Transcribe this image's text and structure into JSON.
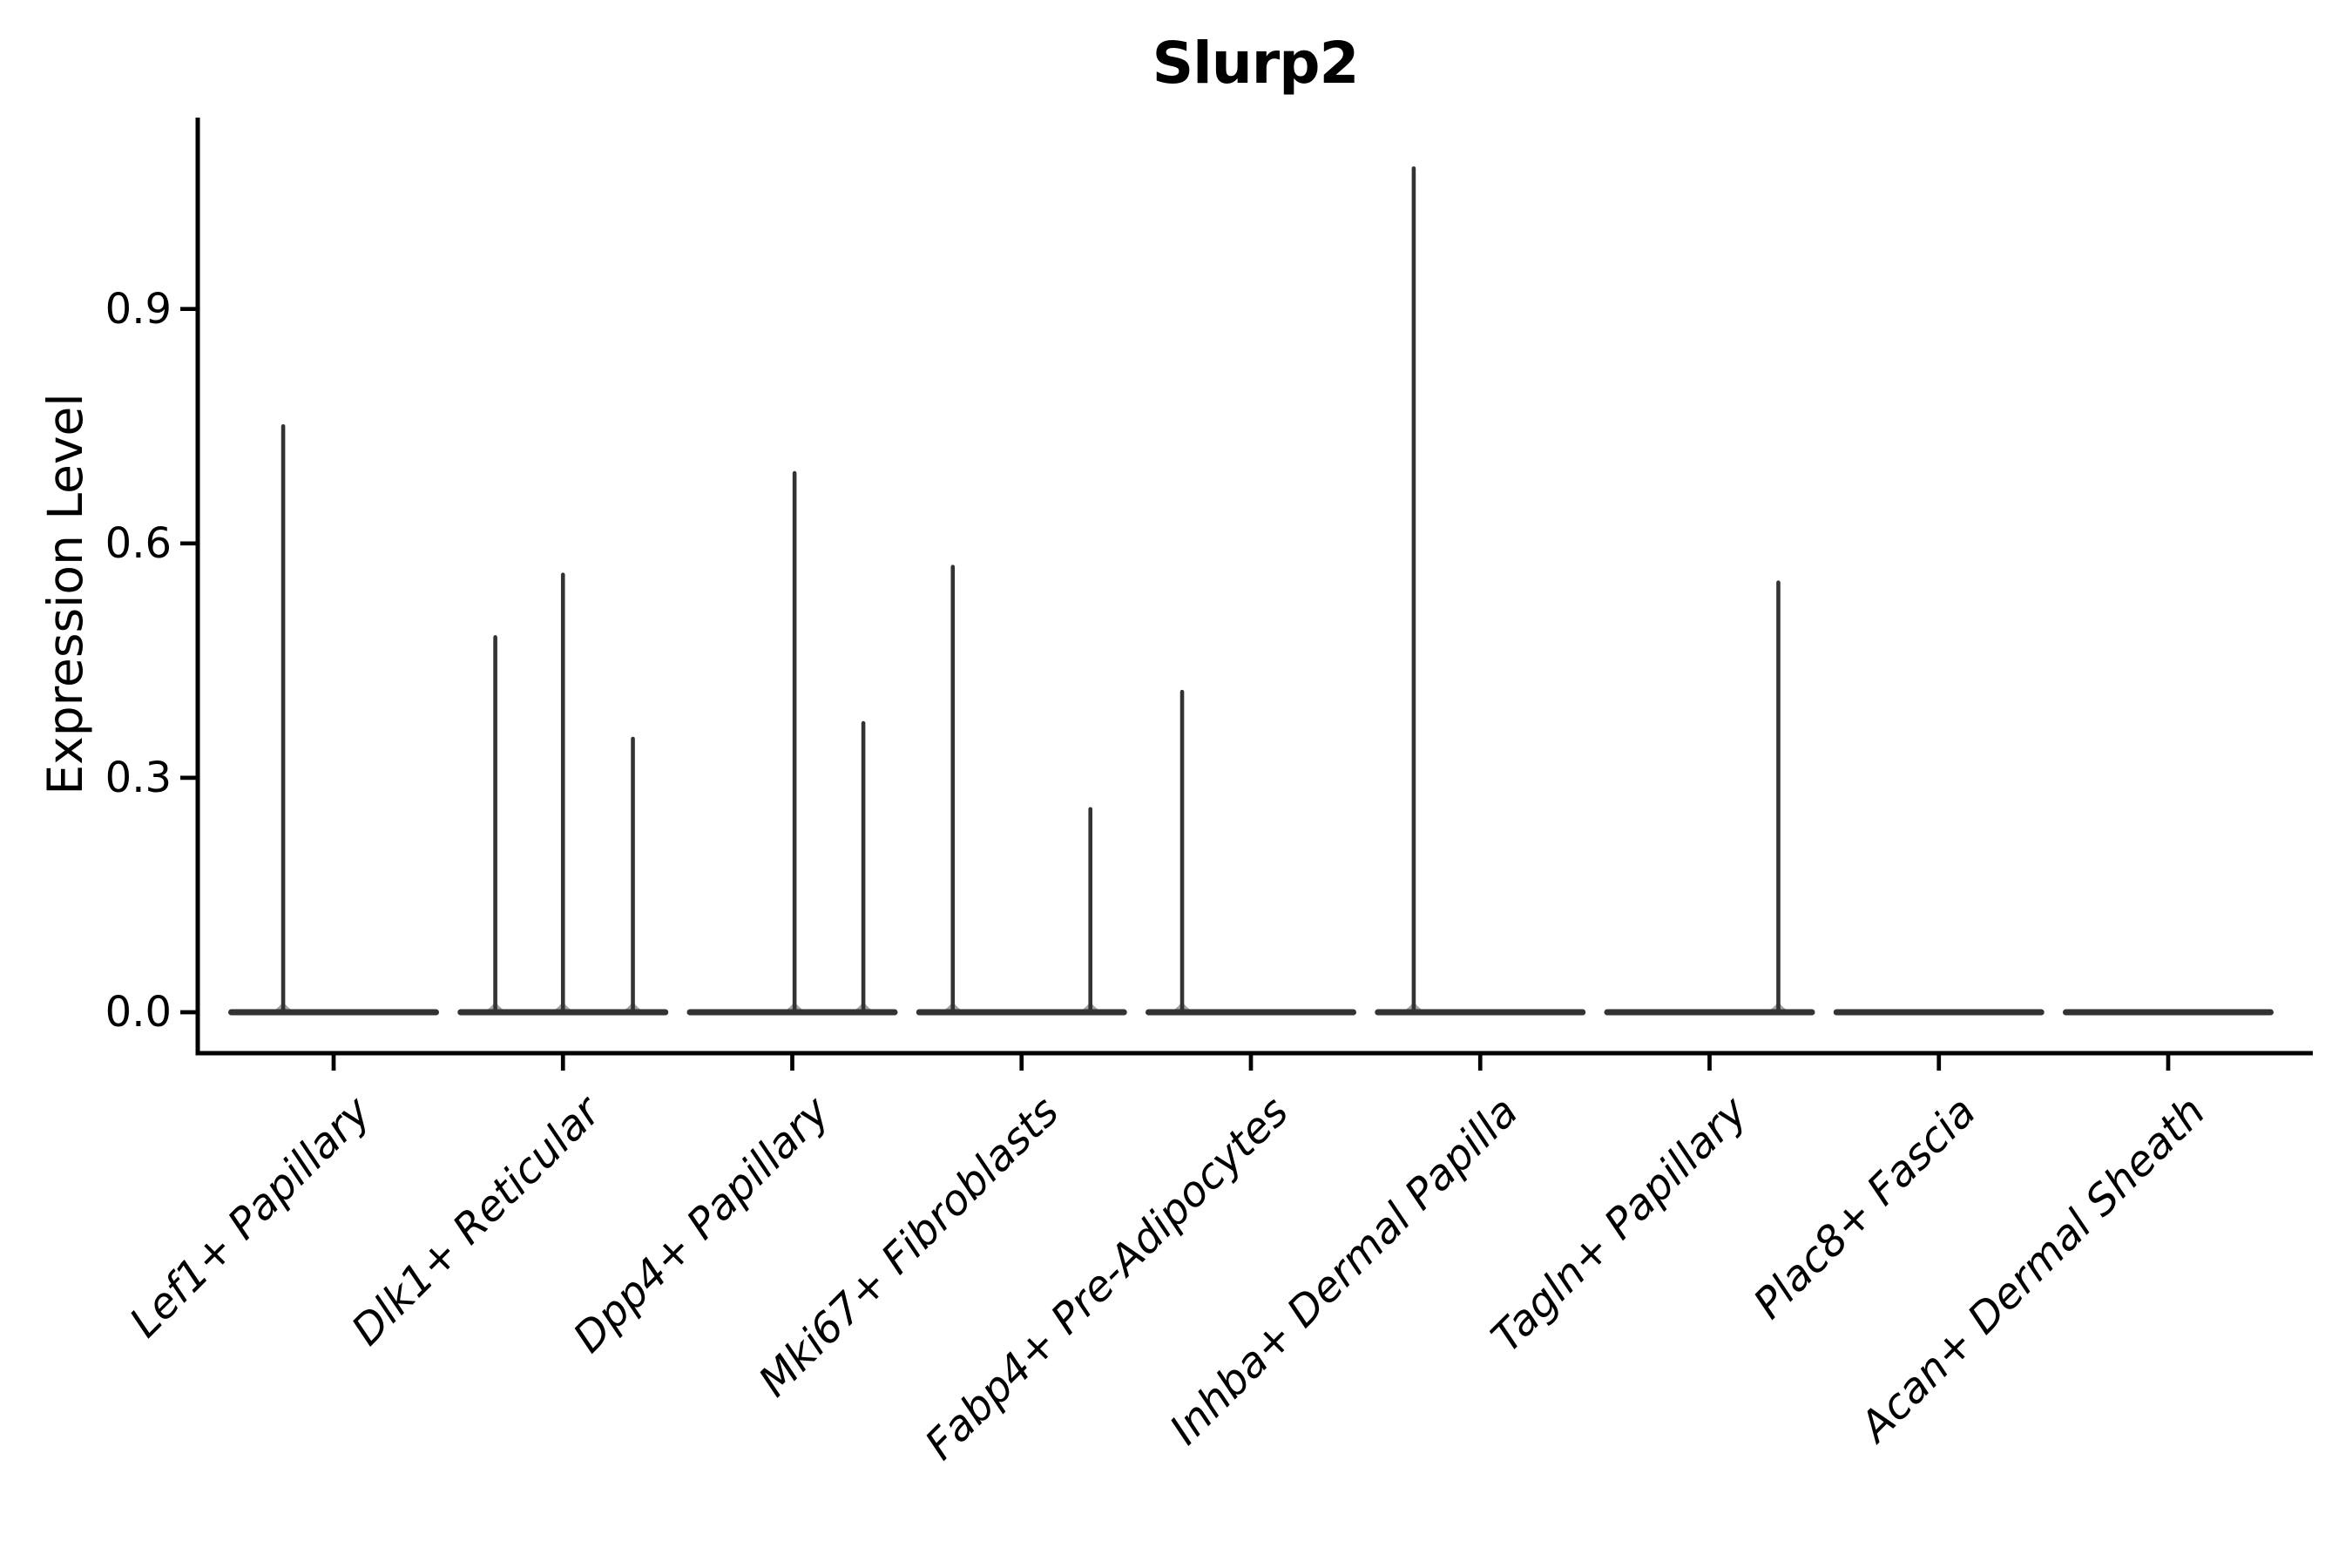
{
  "figure": {
    "background_color": "#ffffff",
    "axis_color": "#000000",
    "violin_color": "#333333"
  },
  "title": "Slurp2",
  "y_axis": {
    "label": "Expression Level",
    "tick_labels": [
      "0.0",
      "0.3",
      "0.6",
      "0.9"
    ],
    "tick_values": [
      0.0,
      0.3,
      0.6,
      0.9
    ]
  },
  "x_axis": {
    "categories": [
      "Lef1+ Papillary",
      "Dlk1+ Reticular",
      "Dpp4+ Papillary",
      "Mki67+ Fibroblasts",
      "Fabp4+ Pre-Adipocytes",
      "Inhba+ Dermal Papilla",
      "Tagln+ Papillary",
      "Plac8+ Fascia",
      "Acan+ Dermal Sheath"
    ]
  },
  "chart_data": {
    "type": "violin",
    "title": "Slurp2",
    "xlabel": "",
    "ylabel": "Expression Level",
    "ylim": [
      -0.05,
      1.15
    ],
    "yticks": [
      0.0,
      0.3,
      0.6,
      0.9
    ],
    "ytick_labels": [
      "0.0",
      "0.3",
      "0.6",
      "0.9"
    ],
    "grid": false,
    "legend": "none",
    "description": "Violin plot of Slurp2 expression; each category shows a flat zero-density baseline with thin spikes marking sub-violin expression maxima. offset_frac is the horizontal offset of each spike as a fraction of the category slot width; peak is the expression level at the spike tip.",
    "baseline_value": 0.0,
    "categories": [
      "Lef1+ Papillary",
      "Dlk1+ Reticular",
      "Dpp4+ Papillary",
      "Mki67+ Fibroblasts",
      "Fabp4+ Pre-Adipocytes",
      "Inhba+ Dermal Papilla",
      "Tagln+ Papillary",
      "Plac8+ Fascia",
      "Acan+ Dermal Sheath"
    ],
    "series": [
      {
        "category": "Lef1+ Papillary",
        "spikes": [
          {
            "offset_frac": -0.22,
            "peak": 0.75
          }
        ]
      },
      {
        "category": "Dlk1+ Reticular",
        "spikes": [
          {
            "offset_frac": -0.295,
            "peak": 0.48
          },
          {
            "offset_frac": 0.0,
            "peak": 0.56
          },
          {
            "offset_frac": 0.305,
            "peak": 0.35
          }
        ]
      },
      {
        "category": "Dpp4+ Papillary",
        "spikes": [
          {
            "offset_frac": 0.01,
            "peak": 0.69
          },
          {
            "offset_frac": 0.31,
            "peak": 0.37
          }
        ]
      },
      {
        "category": "Mki67+ Fibroblasts",
        "spikes": [
          {
            "offset_frac": -0.3,
            "peak": 0.57
          },
          {
            "offset_frac": 0.3,
            "peak": 0.26
          }
        ]
      },
      {
        "category": "Fabp4+ Pre-Adipocytes",
        "spikes": [
          {
            "offset_frac": -0.3,
            "peak": 0.41
          }
        ]
      },
      {
        "category": "Inhba+ Dermal Papilla",
        "spikes": [
          {
            "offset_frac": -0.29,
            "peak": 1.08
          }
        ]
      },
      {
        "category": "Tagln+ Papillary",
        "spikes": [
          {
            "offset_frac": 0.3,
            "peak": 0.55
          }
        ]
      },
      {
        "category": "Plac8+ Fascia",
        "spikes": []
      },
      {
        "category": "Acan+ Dermal Sheath",
        "spikes": []
      }
    ]
  }
}
